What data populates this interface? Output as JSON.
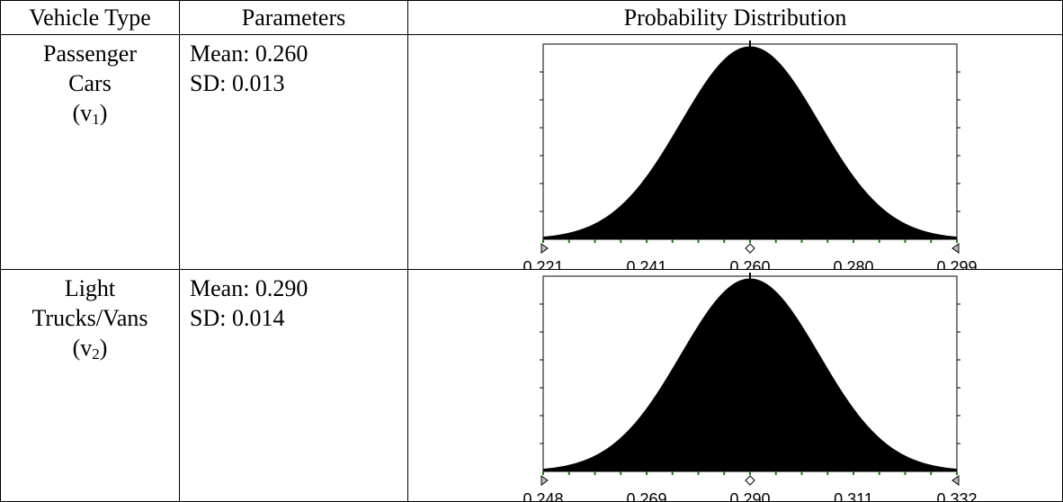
{
  "table": {
    "headers": [
      "Vehicle Type",
      "Parameters",
      "Probability Distribution"
    ],
    "rows": [
      {
        "type_line1": "Passenger",
        "type_line2": "Cars",
        "type_symbol": "v",
        "type_subscript": "1",
        "mean_text": "Mean: 0.260",
        "sd_text": "SD: 0.013"
      },
      {
        "type_line1": "Light",
        "type_line2": "Trucks/Vans",
        "type_symbol": "v",
        "type_subscript": "2",
        "mean_text": "Mean: 0.290",
        "sd_text": "SD: 0.014"
      }
    ]
  },
  "chart_data": [
    {
      "type": "area",
      "distribution": "normal",
      "mean": 0.26,
      "sd": 0.013,
      "xlim": [
        0.221,
        0.299
      ],
      "x_ticks": [
        "0.221",
        "0.241",
        "0.260",
        "0.280",
        "0.299"
      ],
      "fill_color": "#000000",
      "grid": false
    },
    {
      "type": "area",
      "distribution": "normal",
      "mean": 0.29,
      "sd": 0.014,
      "xlim": [
        0.248,
        0.332
      ],
      "x_ticks": [
        "0.248",
        "0.269",
        "0.290",
        "0.311",
        "0.332"
      ],
      "fill_color": "#000000",
      "grid": false
    }
  ]
}
